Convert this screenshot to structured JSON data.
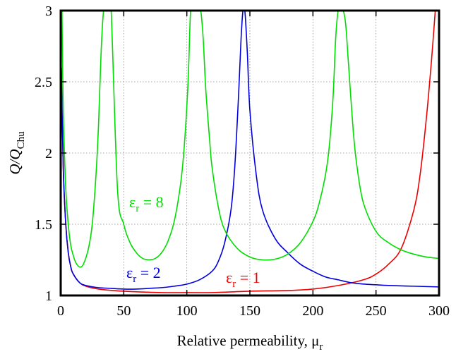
{
  "chart_data": {
    "type": "line",
    "title": "",
    "xlabel": "Relative permeability, μ",
    "xlabel_sub": "r",
    "ylabel": "Q/Q",
    "ylabel_sub": "Chu",
    "xlim": [
      0,
      300
    ],
    "ylim": [
      1,
      3
    ],
    "xticks": [
      "0",
      "50",
      "100",
      "150",
      "200",
      "250",
      "300"
    ],
    "yticks": [
      "1",
      "1.5",
      "2",
      "2.5",
      "3"
    ],
    "grid": true,
    "series": [
      {
        "name": "εr = 1",
        "color": "#ee0000",
        "x": [
          0.5,
          2,
          4,
          6,
          8,
          10,
          15,
          20,
          30,
          50,
          80,
          100,
          120,
          150,
          180,
          200,
          220,
          240,
          250,
          260,
          270,
          280,
          285,
          290,
          294,
          297
        ],
        "y": [
          2.6,
          1.9,
          1.5,
          1.3,
          1.2,
          1.15,
          1.09,
          1.065,
          1.045,
          1.03,
          1.02,
          1.02,
          1.02,
          1.03,
          1.035,
          1.045,
          1.07,
          1.11,
          1.15,
          1.22,
          1.33,
          1.6,
          1.85,
          2.25,
          2.65,
          3.0
        ]
      },
      {
        "name": "εr = 2",
        "color": "#0000dd",
        "x": [
          0.5,
          2,
          4,
          6,
          8,
          10,
          15,
          20,
          30,
          40,
          50,
          60,
          70,
          80,
          90,
          100,
          110,
          120,
          125,
          130,
          135,
          138,
          141,
          143,
          144.5,
          146,
          148,
          150,
          155,
          160,
          170,
          180,
          190,
          200,
          210,
          220,
          230,
          240,
          250,
          260,
          280,
          300
        ],
        "y": [
          2.6,
          1.9,
          1.5,
          1.3,
          1.2,
          1.15,
          1.09,
          1.07,
          1.055,
          1.05,
          1.045,
          1.045,
          1.05,
          1.055,
          1.065,
          1.08,
          1.11,
          1.17,
          1.24,
          1.37,
          1.6,
          1.9,
          2.4,
          2.8,
          3.0,
          3.0,
          2.7,
          2.3,
          1.85,
          1.6,
          1.4,
          1.3,
          1.22,
          1.17,
          1.13,
          1.11,
          1.09,
          1.08,
          1.075,
          1.07,
          1.065,
          1.06
        ]
      },
      {
        "name": "εr = 8",
        "color": "#00dd00",
        "x": [
          1,
          2,
          4,
          6,
          8,
          10,
          12,
          15,
          18,
          22,
          25,
          28,
          30,
          32,
          34,
          36,
          38,
          40,
          45,
          50,
          55,
          60,
          65,
          70,
          75,
          80,
          85,
          90,
          95,
          98,
          101,
          103,
          105,
          107,
          109,
          111,
          113,
          115,
          118,
          120,
          125,
          130,
          140,
          150,
          160,
          170,
          180,
          190,
          200,
          205,
          210,
          213,
          216,
          218,
          220,
          222,
          224,
          226,
          228,
          232,
          235,
          240,
          250,
          260,
          270,
          280,
          290,
          300
        ],
        "y": [
          3.0,
          2.3,
          1.75,
          1.5,
          1.35,
          1.28,
          1.23,
          1.2,
          1.22,
          1.33,
          1.5,
          1.85,
          2.2,
          2.7,
          3.0,
          3.0,
          3.0,
          3.0,
          1.75,
          1.5,
          1.37,
          1.3,
          1.26,
          1.25,
          1.26,
          1.3,
          1.38,
          1.52,
          1.78,
          2.05,
          2.5,
          3.0,
          3.0,
          3.0,
          3.0,
          3.0,
          2.8,
          2.45,
          2.1,
          1.9,
          1.62,
          1.46,
          1.33,
          1.27,
          1.25,
          1.255,
          1.29,
          1.37,
          1.52,
          1.65,
          1.85,
          2.05,
          2.4,
          2.8,
          3.0,
          3.0,
          3.0,
          2.9,
          2.65,
          2.15,
          1.9,
          1.65,
          1.45,
          1.37,
          1.32,
          1.29,
          1.27,
          1.26
        ]
      }
    ]
  },
  "annotations": [
    {
      "id": "er8",
      "base": "ε",
      "sub": "r",
      "rest": " = 8",
      "color": "#00dd00"
    },
    {
      "id": "er2",
      "base": "ε",
      "sub": "r",
      "rest": " = 2",
      "color": "#0000dd"
    },
    {
      "id": "er1",
      "base": "ε",
      "sub": "r",
      "rest": " = 1",
      "color": "#ee0000"
    }
  ]
}
